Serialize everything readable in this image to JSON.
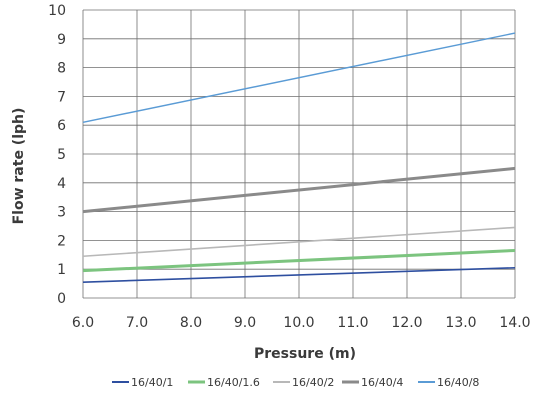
{
  "chart_data": {
    "type": "line",
    "title": "",
    "xlabel": "Pressure (m)",
    "ylabel": "Flow rate (lph)",
    "xlim": [
      6.0,
      14.0
    ],
    "ylim": [
      0,
      10
    ],
    "x_ticks": [
      "6.0",
      "7.0",
      "8.0",
      "9.0",
      "10.0",
      "11.0",
      "12.0",
      "13.0",
      "14.0"
    ],
    "y_ticks": [
      "0",
      "1",
      "2",
      "3",
      "4",
      "5",
      "6",
      "7",
      "8",
      "9",
      "10"
    ],
    "grid": true,
    "legend_position": "bottom",
    "series": [
      {
        "name": "16/40/1",
        "color": "#2e4fa0",
        "stroke_width": 1.6,
        "x": [
          6.0,
          14.0
        ],
        "y": [
          0.55,
          1.05
        ]
      },
      {
        "name": "16/40/1.6",
        "color": "#7cc47f",
        "stroke_width": 3.0,
        "x": [
          6.0,
          14.0
        ],
        "y": [
          0.95,
          1.65
        ]
      },
      {
        "name": "16/40/2",
        "color": "#b8b8b8",
        "stroke_width": 1.6,
        "x": [
          6.0,
          14.0
        ],
        "y": [
          1.45,
          2.45
        ]
      },
      {
        "name": "16/40/4",
        "color": "#8a8a8a",
        "stroke_width": 3.0,
        "x": [
          6.0,
          14.0
        ],
        "y": [
          3.0,
          4.5
        ]
      },
      {
        "name": "16/40/8",
        "color": "#5a9bd5",
        "stroke_width": 1.4,
        "x": [
          6.0,
          14.0
        ],
        "y": [
          6.1,
          9.2
        ]
      }
    ]
  }
}
